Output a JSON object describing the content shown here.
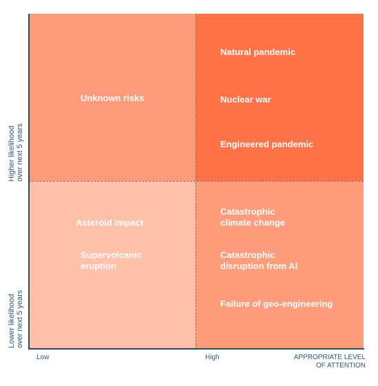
{
  "colors": {
    "top_left": "#fd9a7a",
    "top_right": "#ff7146",
    "bottom_left": "#ffbfa9",
    "bottom_right": "#fe9b7b",
    "axis": "#2b4b5a",
    "axis_text": "#2d5878"
  },
  "quadrants": {
    "top_left": {
      "items": [
        "Unknown risks"
      ]
    },
    "top_right": {
      "items": [
        "Natural pandemic",
        "Nuclear war",
        "Engineered pandemic"
      ]
    },
    "bottom_left": {
      "items": [
        "Asteroid impact",
        "Supervolcanic\neruption"
      ]
    },
    "bottom_right": {
      "items": [
        "Catastrophic\nclimate change",
        "Catastrophic\ndisruption from AI",
        "Failure of geo-engineering"
      ]
    }
  },
  "y_axis": {
    "high_label": "Higher likelihood\nover next 5 years",
    "low_label": "Lower likelihood\nover next 5 years"
  },
  "x_axis": {
    "low_label": "Low",
    "high_label": "High",
    "title": "APPROPRIATE LEVEL\nOF ATTENTION"
  }
}
